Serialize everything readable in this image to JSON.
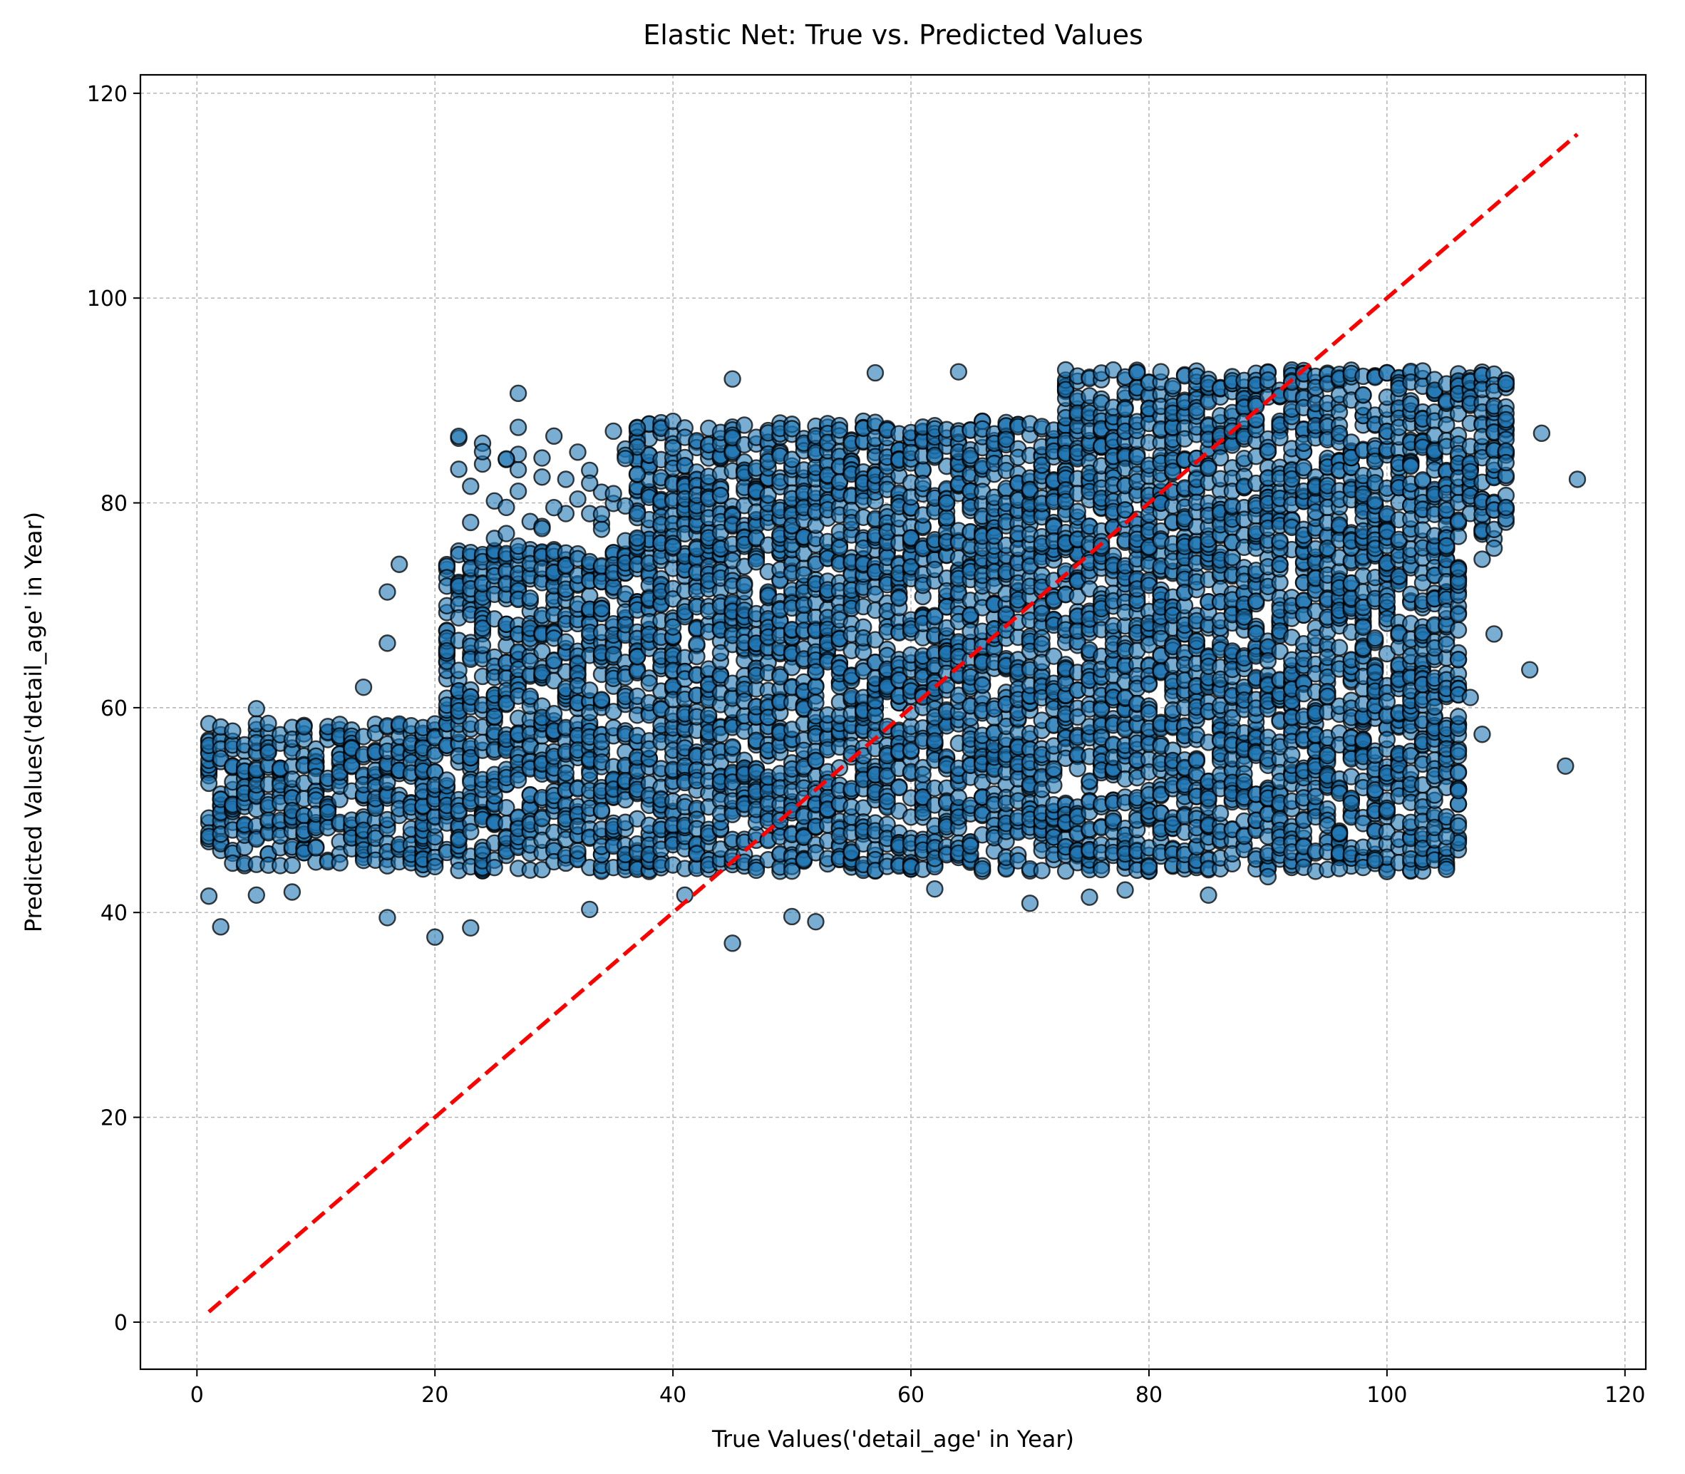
{
  "chart_data": {
    "type": "scatter",
    "title": "Elastic Net: True vs. Predicted Values",
    "xlabel": "True Values('detail_age' in Year)",
    "ylabel": "Predicted Values('detail_age' in Year)",
    "xlim": [
      -4.75,
      121.75
    ],
    "ylim": [
      -4.6,
      121.8
    ],
    "xticks": [
      0,
      20,
      40,
      60,
      80,
      100,
      120
    ],
    "yticks": [
      0,
      20,
      40,
      60,
      80,
      100,
      120
    ],
    "xtick_labels": [
      "0",
      "20",
      "40",
      "60",
      "80",
      "100",
      "120"
    ],
    "ytick_labels": [
      "0",
      "20",
      "40",
      "60",
      "80",
      "100",
      "120"
    ],
    "grid": true,
    "point_color": "#1f77b4",
    "point_edge_color": "#000000",
    "reference_line": {
      "x": [
        1,
        116
      ],
      "y": [
        1,
        116
      ],
      "color": "#ff0000",
      "style": "dashed"
    },
    "clusters": [
      {
        "x": [
          1,
          19
        ],
        "y": [
          44.5,
          58.5
        ]
      },
      {
        "x": [
          19,
          106
        ],
        "y": [
          44.0,
          59.0
        ]
      },
      {
        "x": [
          21,
          106
        ],
        "y": [
          59.0,
          75.5
        ]
      },
      {
        "x": [
          37,
          73
        ],
        "y": [
          75.5,
          88.0
        ]
      },
      {
        "x": [
          73,
          110
        ],
        "y": [
          75.5,
          93.0
        ]
      }
    ],
    "outliers": [
      {
        "x": 2,
        "y": 38.6
      },
      {
        "x": 20,
        "y": 37.6
      },
      {
        "x": 23,
        "y": 38.5
      },
      {
        "x": 45,
        "y": 37.0
      },
      {
        "x": 115,
        "y": 54.3
      },
      {
        "x": 116,
        "y": 82.3
      },
      {
        "x": 113,
        "y": 86.8
      },
      {
        "x": 112,
        "y": 63.7
      },
      {
        "x": 108,
        "y": 57.4
      },
      {
        "x": 108,
        "y": 74.5
      },
      {
        "x": 109,
        "y": 67.2
      },
      {
        "x": 107,
        "y": 61.0
      },
      {
        "x": 27,
        "y": 90.7
      },
      {
        "x": 45,
        "y": 92.1
      },
      {
        "x": 57,
        "y": 92.7
      },
      {
        "x": 64,
        "y": 92.8
      },
      {
        "x": 22,
        "y": 86.5
      },
      {
        "x": 24,
        "y": 85.0
      },
      {
        "x": 16,
        "y": 71.3
      },
      {
        "x": 17,
        "y": 74.0
      },
      {
        "x": 16,
        "y": 66.3
      },
      {
        "x": 14,
        "y": 62.0
      },
      {
        "x": 5,
        "y": 59.9
      },
      {
        "x": 16,
        "y": 39.5
      },
      {
        "x": 70,
        "y": 40.9
      },
      {
        "x": 75,
        "y": 41.5
      },
      {
        "x": 85,
        "y": 41.7
      },
      {
        "x": 90,
        "y": 43.5
      },
      {
        "x": 96,
        "y": 44.3
      },
      {
        "x": 99,
        "y": 45.1
      },
      {
        "x": 104,
        "y": 48.3
      },
      {
        "x": 50,
        "y": 39.6
      },
      {
        "x": 52,
        "y": 39.1
      },
      {
        "x": 1,
        "y": 41.6
      },
      {
        "x": 5,
        "y": 41.7
      },
      {
        "x": 8,
        "y": 42.0
      },
      {
        "x": 33,
        "y": 40.3
      },
      {
        "x": 41,
        "y": 41.7
      },
      {
        "x": 62,
        "y": 42.3
      },
      {
        "x": 78,
        "y": 42.2
      },
      {
        "x": 26,
        "y": 84.3
      },
      {
        "x": 31,
        "y": 82.3
      },
      {
        "x": 34,
        "y": 78.9
      },
      {
        "x": 29,
        "y": 77.5
      },
      {
        "x": 35,
        "y": 87.0
      },
      {
        "x": 105,
        "y": 75.8
      },
      {
        "x": 106,
        "y": 64.7
      },
      {
        "x": 105,
        "y": 47.4
      }
    ]
  }
}
